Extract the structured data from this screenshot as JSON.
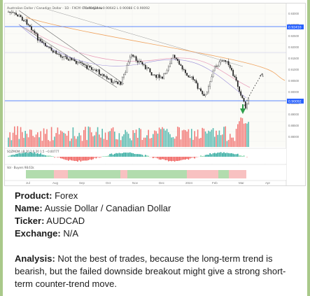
{
  "chart": {
    "header": "Australian Dollar / Canadian Dollar · 1D · FXCM · TradingView",
    "ohlc": "O 0.90424  H 0.90642  L 0.90088  C 0.90092",
    "indicator_pane1_label": "SQZMOM_LB 20 2.0 20 1.5 −0.00777",
    "indicator_pane2_label": "Vol · Buyers 98.61k",
    "price_axis": [
      "0.93000",
      "0.92800",
      "0.92500",
      "0.92000",
      "0.91500",
      "0.91000",
      "0.90500",
      "0.90000",
      "0.89500",
      "0.89000",
      "0.88500",
      "0.88000"
    ],
    "highlight_price_1": "0.92410",
    "highlight_price_2": "0.90092",
    "time_axis": [
      "Jul",
      "Aug",
      "Sep",
      "Oct",
      "Nov",
      "Dec",
      "2024",
      "Feb",
      "Mar",
      "Apr"
    ],
    "colors": {
      "up": "#26a69a",
      "down": "#ef5350",
      "candle": "#1a1a1a",
      "hline": "#2962ff"
    }
  },
  "product_label": "Product:",
  "product_value": " Forex",
  "name_label": "Name:",
  "name_value": " Aussie Dollar / Canadian Dollar",
  "ticker_label": "Ticker:",
  "ticker_value": " AUDCAD",
  "exchange_label": "Exchange:",
  "exchange_value": " N/A",
  "analysis_label": "Analysis:",
  "analysis_value": " Not the best of trades, because the long-term trend is bearish, but the failed downside breakout might give a strong short-term counter-trend move."
}
